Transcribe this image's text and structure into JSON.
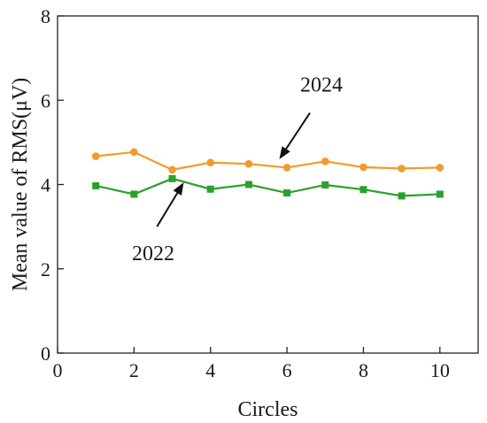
{
  "chart_data": {
    "type": "line",
    "xlabel": "Circles",
    "ylabel": "Mean value of RMS(μV)",
    "xlim": [
      0,
      11
    ],
    "ylim": [
      0,
      8
    ],
    "xticks": [
      0,
      2,
      4,
      6,
      8,
      10
    ],
    "yticks": [
      0,
      2,
      4,
      6,
      8
    ],
    "x_tick_labels": [
      "0",
      "2",
      "4",
      "6",
      "8",
      "10"
    ],
    "y_tick_labels": [
      "0",
      "2",
      "4",
      "6",
      "8"
    ],
    "grid": false,
    "x": [
      1,
      2,
      3,
      4,
      5,
      6,
      7,
      8,
      9,
      10
    ],
    "series": [
      {
        "name": "2024",
        "color": "#f39a2b",
        "marker": "circle",
        "values": [
          4.67,
          4.77,
          4.35,
          4.52,
          4.49,
          4.4,
          4.55,
          4.41,
          4.38,
          4.4
        ]
      },
      {
        "name": "2022",
        "color": "#2ba02b",
        "marker": "square",
        "values": [
          3.97,
          3.77,
          4.14,
          3.89,
          4.0,
          3.8,
          3.99,
          3.88,
          3.73,
          3.77
        ]
      }
    ],
    "annotations": [
      {
        "text": "2024",
        "series": "2024",
        "text_xy": [
          6.9,
          6.2
        ],
        "arrow_from": [
          6.6,
          5.7
        ],
        "arrow_to": [
          5.8,
          4.6
        ]
      },
      {
        "text": "2022",
        "series": "2022",
        "text_xy": [
          2.5,
          2.2
        ],
        "arrow_from": [
          2.6,
          3.0
        ],
        "arrow_to": [
          3.3,
          4.05
        ]
      }
    ]
  }
}
